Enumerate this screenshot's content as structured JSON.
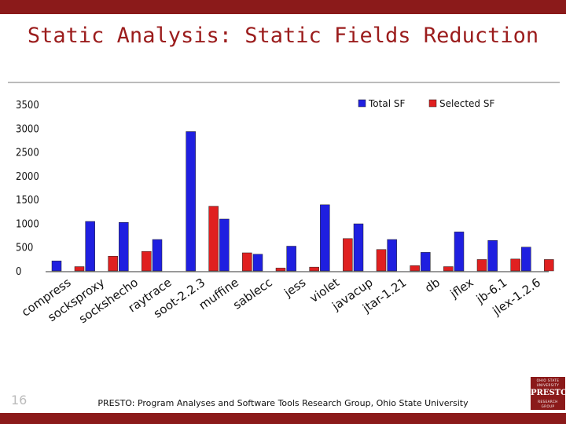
{
  "slide": {
    "title": "Static Analysis: Static Fields Reduction",
    "footer": "PRESTO: Program Analyses and Software Tools Research Group, Ohio State University",
    "slide_number": "16",
    "logo": {
      "line1": "OHIO STATE UNIVERSITY",
      "name": "PRESTO",
      "line2": "RESEARCH GROUP"
    }
  },
  "chart_data": {
    "type": "bar",
    "categories": [
      "compress",
      "socksproxy",
      "sockshecho",
      "raytrace",
      "soot-2.2.3",
      "muffine",
      "sablecc",
      "jess",
      "violet",
      "javacup",
      "jtar-1.21",
      "db",
      "jflex",
      "jb-6.1",
      "jlex-1.2.6"
    ],
    "series": [
      {
        "name": "Total SF",
        "color": "#1f1fe0",
        "values": [
          210,
          1040,
          1020,
          660,
          2930,
          1090,
          350,
          520,
          1390,
          990,
          660,
          390,
          820,
          640,
          500
        ]
      },
      {
        "name": "Selected SF",
        "color": "#e02020",
        "values": [
          90,
          310,
          410,
          null,
          1360,
          380,
          60,
          80,
          680,
          450,
          110,
          90,
          240,
          250,
          240
        ]
      }
    ],
    "yticks": [
      "0",
      "500",
      "1000",
      "1500",
      "2000",
      "2500",
      "3000",
      "3500"
    ],
    "ylim": [
      0,
      3500
    ],
    "legend_position": "top-right",
    "grid": false
  }
}
